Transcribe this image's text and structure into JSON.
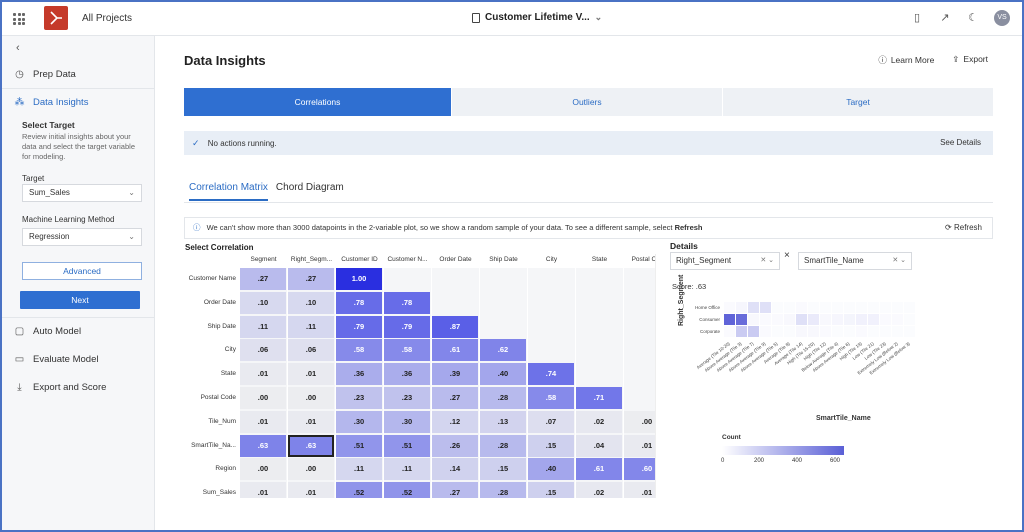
{
  "topbar": {
    "all_projects": "All Projects",
    "project_title": "Customer Lifetime V...",
    "avatar_initials": "VS"
  },
  "sidebar": {
    "items": [
      {
        "label": "Prep Data",
        "icon": "clock-icon"
      },
      {
        "label": "Data Insights",
        "icon": "insights-icon"
      },
      {
        "label": "Auto Model",
        "icon": "cube-icon"
      },
      {
        "label": "Evaluate Model",
        "icon": "monitor-icon"
      },
      {
        "label": "Export and Score",
        "icon": "download-icon"
      }
    ],
    "select_target_title": "Select Target",
    "select_target_desc": "Review initial insights about your data and select the target variable for modeling.",
    "target_label": "Target",
    "target_value": "Sum_Sales",
    "ml_method_label": "Machine Learning Method",
    "ml_method_value": "Regression",
    "advanced_label": "Advanced",
    "next_label": "Next"
  },
  "main": {
    "title": "Data Insights",
    "learn_more": "Learn More",
    "export": "Export",
    "tabs": [
      "Correlations",
      "Outliers",
      "Target"
    ],
    "status_text": "No actions running.",
    "see_details": "See Details",
    "subtabs": [
      "Correlation Matrix",
      "Chord Diagram"
    ],
    "info_text": "We can't show more than 3000 datapoints in the 2-variable plot, so we show a random sample of your data. To see a different sample, select",
    "info_refresh_word": "Refresh",
    "refresh_label": "Refresh",
    "select_correlation": "Select Correlation"
  },
  "matrix": {
    "columns": [
      "Segment",
      "Right_Segm...",
      "Customer ID",
      "Customer N...",
      "Order Date",
      "Ship Date",
      "City",
      "State",
      "Postal Cod"
    ],
    "rows": [
      {
        "label": "Customer Name",
        "values": [
          ".27",
          ".27",
          "1.00"
        ]
      },
      {
        "label": "Order Date",
        "values": [
          ".10",
          ".10",
          ".78",
          ".78"
        ]
      },
      {
        "label": "Ship Date",
        "values": [
          ".11",
          ".11",
          ".79",
          ".79",
          ".87"
        ]
      },
      {
        "label": "City",
        "values": [
          ".06",
          ".06",
          ".58",
          ".58",
          ".61",
          ".62"
        ]
      },
      {
        "label": "State",
        "values": [
          ".01",
          ".01",
          ".36",
          ".36",
          ".39",
          ".40",
          ".74"
        ]
      },
      {
        "label": "Postal Code",
        "values": [
          ".00",
          ".00",
          ".23",
          ".23",
          ".27",
          ".28",
          ".58",
          ".71"
        ]
      },
      {
        "label": "Tile_Num",
        "values": [
          ".01",
          ".01",
          ".30",
          ".30",
          ".12",
          ".13",
          ".07",
          ".02",
          ".00"
        ]
      },
      {
        "label": "SmartTile_Na...",
        "values": [
          ".63",
          ".63",
          ".51",
          ".51",
          ".26",
          ".28",
          ".15",
          ".04",
          ".01"
        ]
      },
      {
        "label": "Region",
        "values": [
          ".00",
          ".00",
          ".11",
          ".11",
          ".14",
          ".15",
          ".40",
          ".61",
          ".60"
        ]
      },
      {
        "label": "Sum_Sales",
        "values": [
          ".01",
          ".01",
          ".52",
          ".52",
          ".27",
          ".28",
          ".15",
          ".02",
          ".01"
        ]
      }
    ],
    "selected_row": 7,
    "selected_col": 1
  },
  "details": {
    "title": "Details",
    "var1": "Right_Segment",
    "var2": "SmartTile_Name",
    "score": "Score: .63",
    "y_label": "Right_Segment",
    "x_label": "SmartTile_Name",
    "row_labels": [
      "Home Office",
      "Consumer",
      "Corporate"
    ],
    "col_labels": [
      "Average (Tile 10-20)",
      "Above Average (Tile 3)",
      "Above Average (Tile 7)",
      "Above Average (Tile 9)",
      "Above Average (Tile 5)",
      "Average (Tile 8)",
      "Average (Tile 14)",
      "High (Tile 15-20)",
      "High (Tile 12)",
      "Below Average (Tile 4)",
      "Above Average (Tile 6)",
      "High (Tile 19)",
      "Low (Tile 21)",
      "Low (Tile 23)",
      "Extremely Low (Below 2)",
      "Extremely Low (Below 3)"
    ],
    "cells": [
      [
        0.03,
        0.05,
        0.18,
        0.18,
        0.02,
        0.02,
        0.03,
        0.02,
        0.02,
        0.02,
        0.02,
        0.02,
        0.02,
        0.02,
        0.02,
        0.02
      ],
      [
        0.9,
        0.85,
        0.04,
        0.03,
        0.03,
        0.04,
        0.18,
        0.12,
        0.04,
        0.05,
        0.06,
        0.08,
        0.08,
        0.03,
        0.03,
        0.02
      ],
      [
        0.03,
        0.3,
        0.3,
        0.03,
        0.02,
        0.02,
        0.04,
        0.04,
        0.03,
        0.02,
        0.02,
        0.03,
        0.02,
        0.02,
        0.02,
        0.02
      ]
    ],
    "legend_title": "Count",
    "legend_ticks": [
      "0",
      "200",
      "400",
      "600"
    ],
    "color_low": "#ffffff",
    "color_high": "#4d52d4"
  }
}
